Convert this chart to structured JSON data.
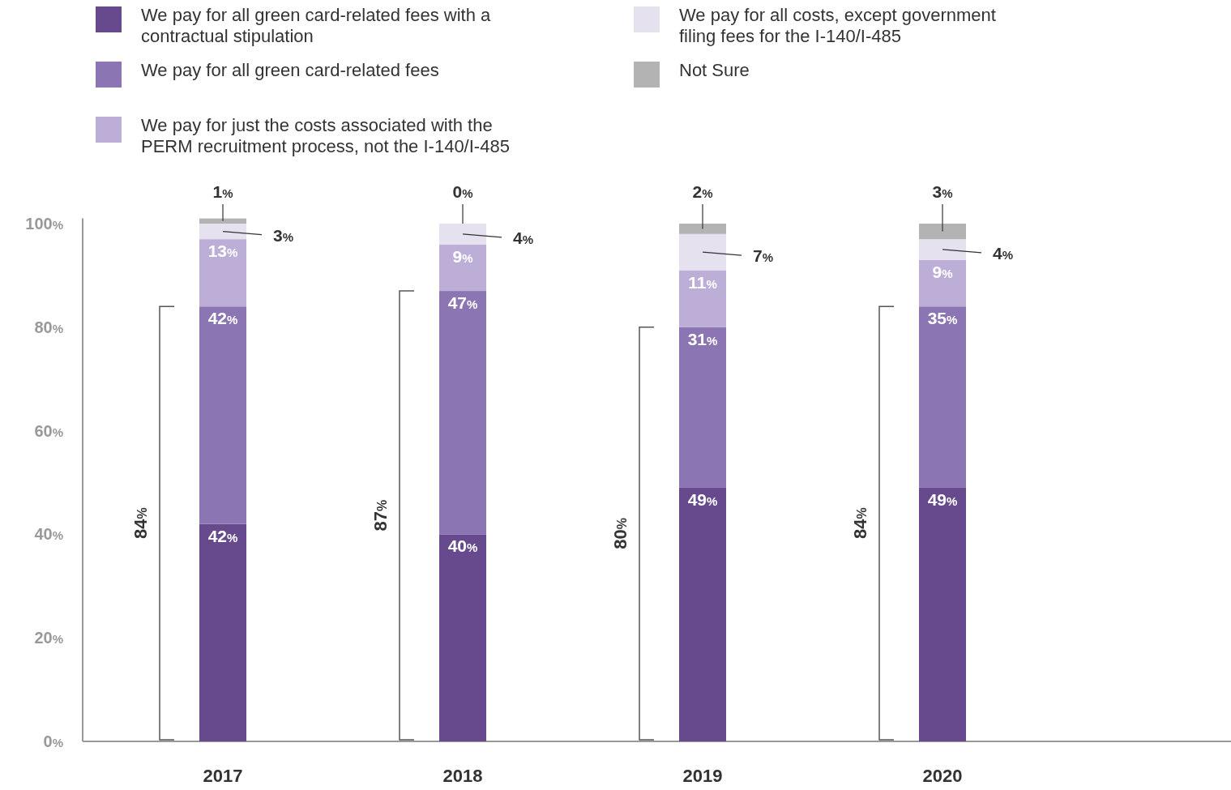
{
  "chart_data": {
    "type": "bar",
    "stacked": true,
    "categories": [
      "2017",
      "2018",
      "2019",
      "2020"
    ],
    "series": [
      {
        "name": "We pay for all green card-related fees with a contractual stipulation",
        "color": "#674a8e",
        "values": [
          42,
          40,
          49,
          49
        ],
        "value_labels": [
          "42%",
          "40%",
          "49%",
          "49%"
        ]
      },
      {
        "name": "We pay for all green card-related fees",
        "color": "#8b75b3",
        "values": [
          42,
          47,
          31,
          35
        ],
        "value_labels": [
          "42%",
          "47%",
          "31%",
          "35%"
        ]
      },
      {
        "name": "We pay for just the costs associated with the PERM recruitment process, not the I-140/I-485",
        "color": "#bcaed6",
        "values": [
          13,
          9,
          11,
          9
        ],
        "value_labels": [
          "13%",
          "9%",
          "11%",
          "9%"
        ]
      },
      {
        "name": "We pay for all costs, except government filing fees for the I-140/I-485",
        "color": "#e6e1ef",
        "values": [
          3,
          4,
          7,
          4
        ],
        "value_labels": [
          "3%",
          "4%",
          "7%",
          "4%"
        ]
      },
      {
        "name": "Not Sure",
        "color": "#b3b3b3",
        "values": [
          1,
          0,
          2,
          3
        ],
        "value_labels": [
          "1%",
          "0%",
          "2%",
          "3%"
        ]
      }
    ],
    "ylim": [
      0,
      101
    ],
    "yticks": [
      {
        "value": 0,
        "label": "0%"
      },
      {
        "value": 20,
        "label": "20%"
      },
      {
        "value": 40,
        "label": "40%"
      },
      {
        "value": 60,
        "label": "60%"
      },
      {
        "value": 80,
        "label": "80%"
      },
      {
        "value": 100,
        "label": "100%"
      }
    ],
    "annotations": [
      "84%",
      "87%",
      "80%",
      "84%"
    ],
    "legend": "top left",
    "grid": false
  }
}
